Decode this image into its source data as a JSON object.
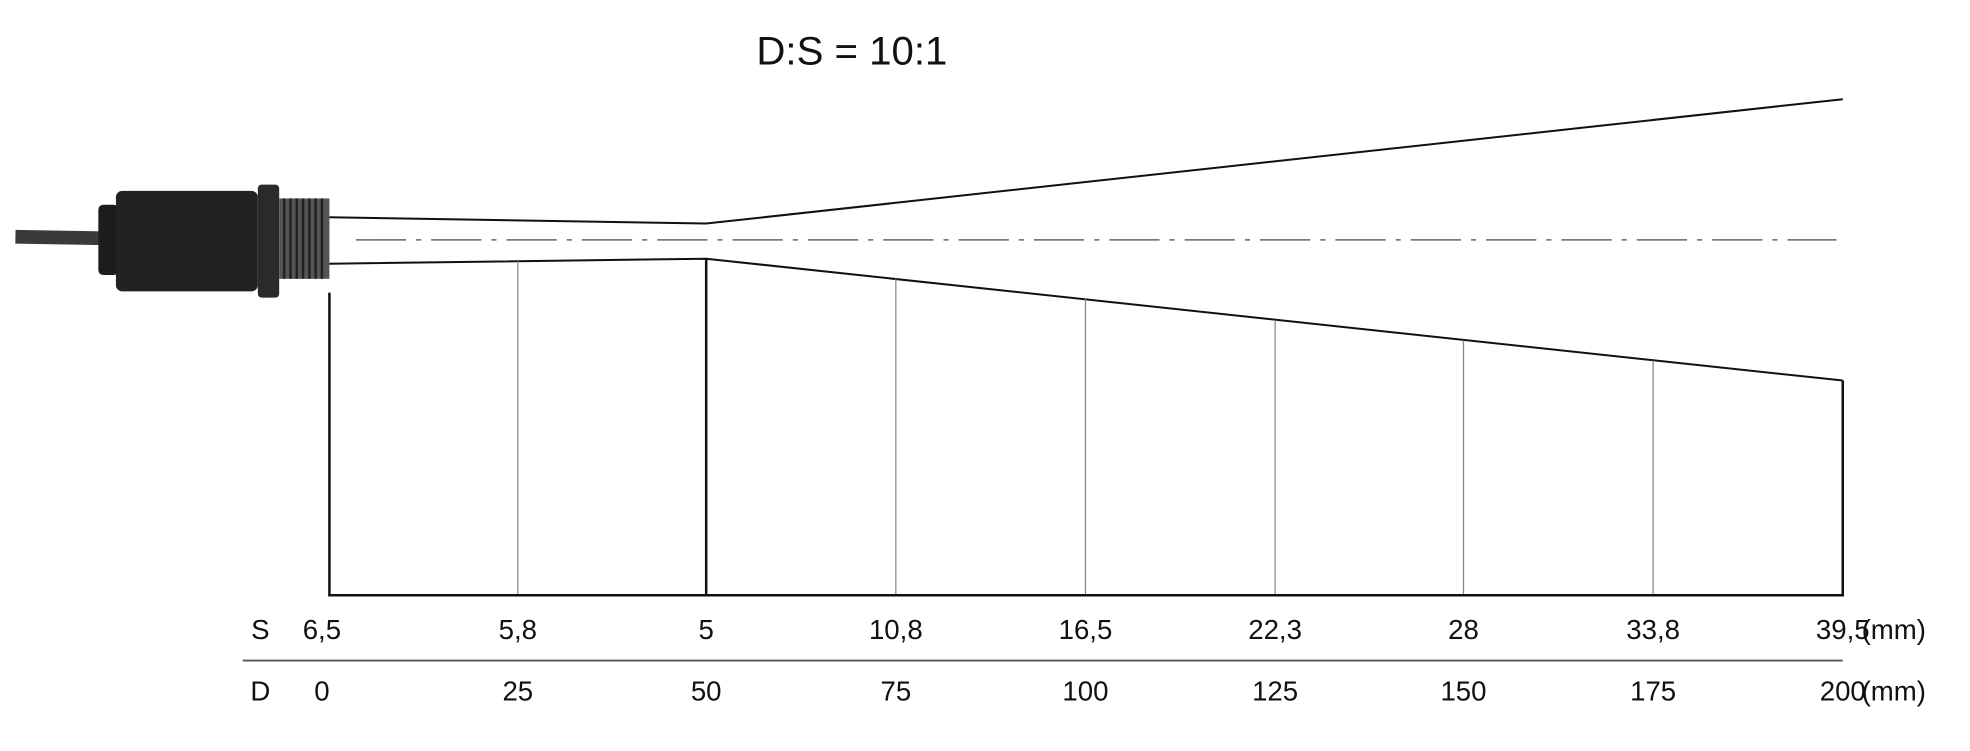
{
  "title": "D:S = 10:1",
  "rows": [
    {
      "label": "S",
      "values": [
        "6,5",
        "5,8",
        "5",
        "10,8",
        "16,5",
        "22,3",
        "28",
        "33,8",
        "39,5"
      ],
      "unit": "(mm)"
    },
    {
      "label": "D",
      "values": [
        "0",
        "25",
        "50",
        "75",
        "100",
        "125",
        "150",
        "175",
        "200"
      ],
      "unit": "(mm)"
    }
  ]
}
